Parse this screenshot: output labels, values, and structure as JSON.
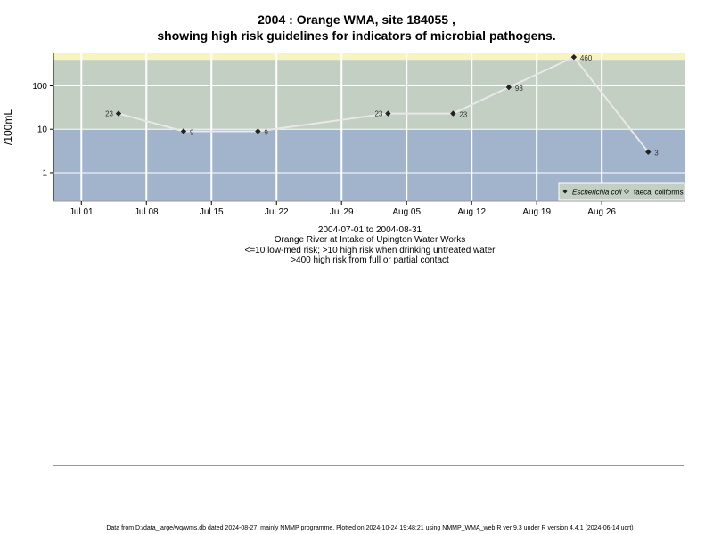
{
  "title_line1": "2004 : Orange WMA, site 184055 ,",
  "title_line2": "showing high risk guidelines for indicators of microbial pathogens.",
  "captions": {
    "date_range": "2004-07-01 to 2004-08-31",
    "location": "Orange River at Intake of Upington Water Works",
    "risk_low": "<=10 low-med risk; >10 high risk when drinking untreated water",
    "risk_high": ">400 high risk from full or partial contact"
  },
  "footer": "Data from D:/data_large/wq/wms.db dated 2024-08-27, mainly NMMP programme. Plotted on 2024-10-24 19:48:21 using NMMP_WMA_web.R ver 9.3 under R version 4.4.1 (2024-06-14 ucrt)",
  "colors": {
    "band_low": "#a2b3cc",
    "band_mid": "#c2cfc2",
    "band_high": "#f7f4c0",
    "line": "#e8e8e8",
    "grid": "#ffffff"
  },
  "chart_data": {
    "type": "line",
    "ylabel": "/100mL",
    "y_scale": "log",
    "xlim": [
      "2004-06-28",
      "2004-09-04"
    ],
    "ylim": [
      0.22,
      560
    ],
    "x_ticks": [
      "Jul 01",
      "Jul 08",
      "Jul 15",
      "Jul 22",
      "Jul 29",
      "Aug 05",
      "Aug 12",
      "Aug 19",
      "Aug 26"
    ],
    "x_tick_dates": [
      "2004-07-01",
      "2004-07-08",
      "2004-07-15",
      "2004-07-22",
      "2004-07-29",
      "2004-08-05",
      "2004-08-12",
      "2004-08-19",
      "2004-08-26"
    ],
    "y_ticks": [
      1,
      10,
      100
    ],
    "y_tick_labels": [
      "1",
      "10",
      "100"
    ],
    "thresholds": [
      10,
      400
    ],
    "legend": {
      "position": "bottom-right",
      "entries": [
        "Escherichia coli",
        "faecal coliforms"
      ]
    },
    "series": [
      {
        "name": "Escherichia coli",
        "x": [
          "2004-07-05",
          "2004-07-12",
          "2004-07-20",
          "2004-08-03",
          "2004-08-10",
          "2004-08-16",
          "2004-08-23",
          "2004-08-31"
        ],
        "y": [
          23,
          9,
          9,
          23,
          23,
          93,
          460,
          3
        ],
        "labels": [
          "23",
          "9",
          "9",
          "23",
          "23",
          "93",
          "460",
          "3"
        ]
      }
    ]
  }
}
